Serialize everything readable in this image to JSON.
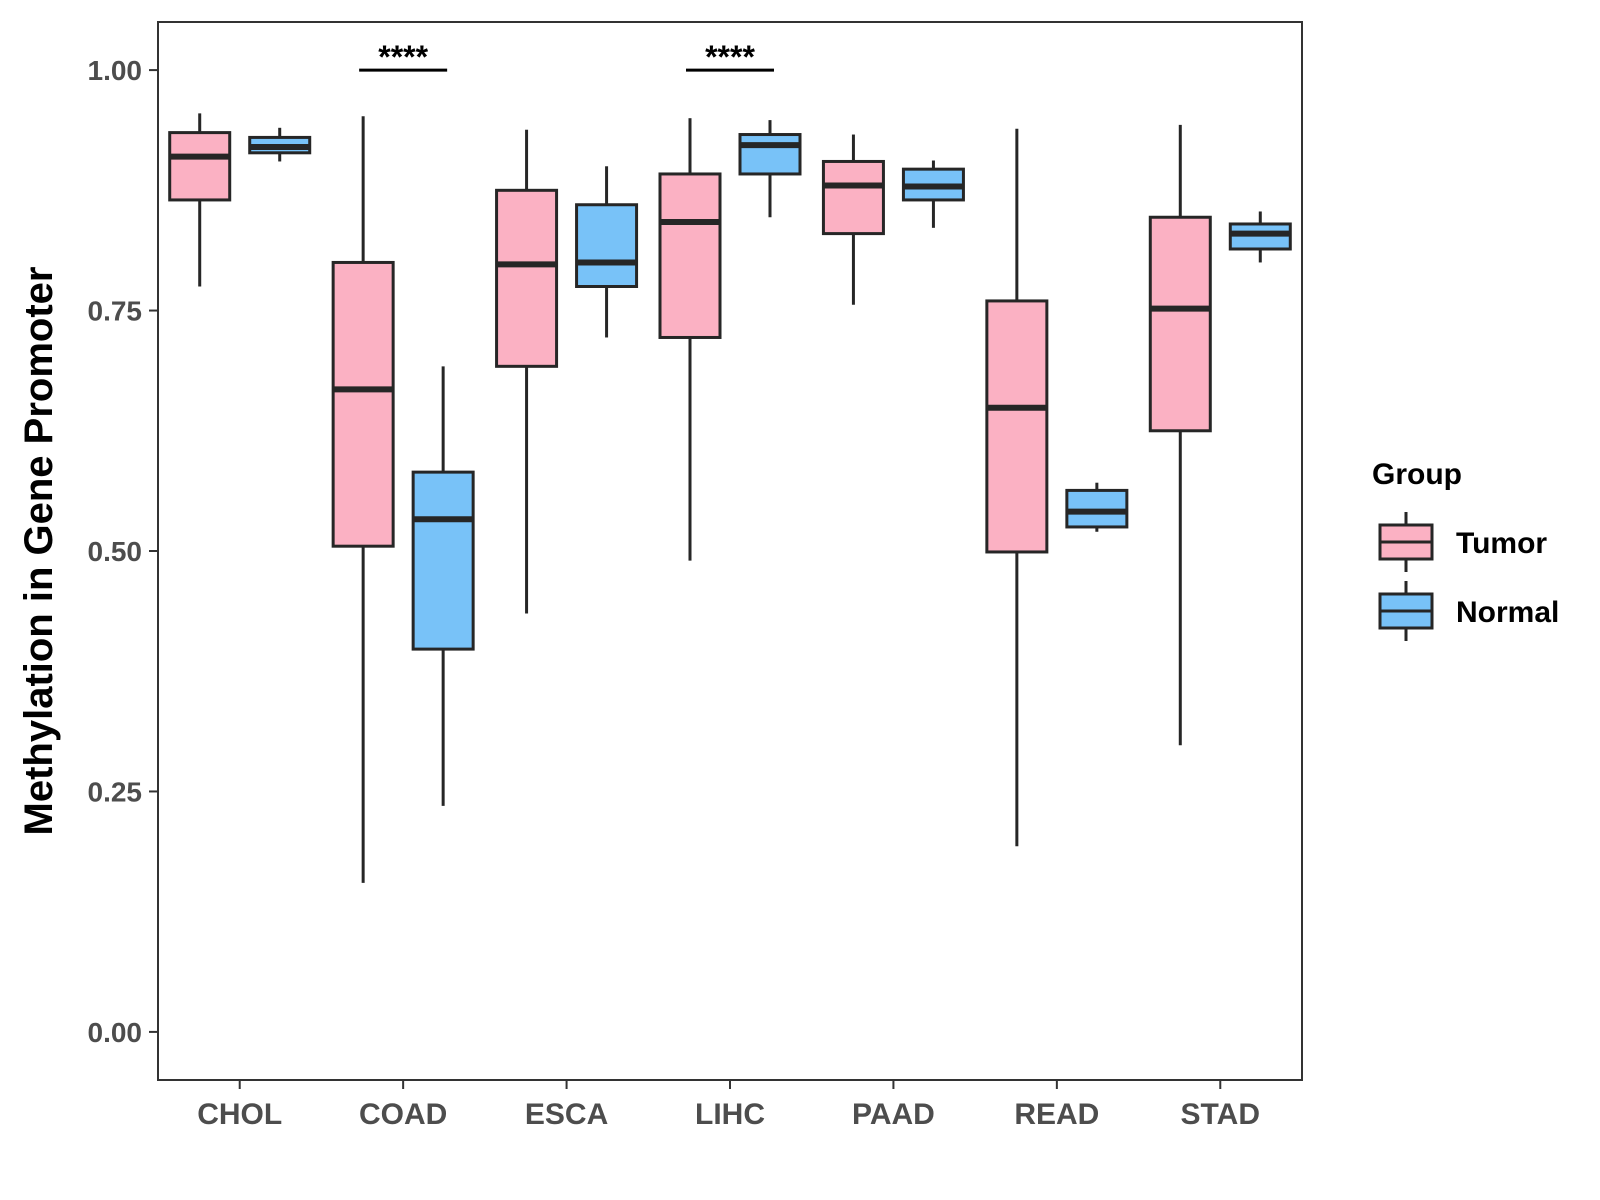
{
  "chart_data": {
    "type": "boxplot",
    "title": "",
    "xlabel": "",
    "ylabel": "Methylation in Gene Promoter",
    "ylim": [
      -0.05,
      1.05
    ],
    "yticks": [
      0.0,
      0.25,
      0.5,
      0.75,
      1.0
    ],
    "ytick_labels": [
      "0.00",
      "0.25",
      "0.50",
      "0.75",
      "1.00"
    ],
    "categories": [
      "CHOL",
      "COAD",
      "ESCA",
      "LIHC",
      "PAAD",
      "READ",
      "STAD"
    ],
    "grid": false,
    "legend": {
      "title": "Group",
      "position": "right",
      "entries": [
        {
          "name": "Tumor",
          "color": "#fbb1c3"
        },
        {
          "name": "Normal",
          "color": "#78c2f8"
        }
      ]
    },
    "series": [
      {
        "name": "Tumor",
        "color": "#fbb1c3",
        "boxes": [
          {
            "category": "CHOL",
            "min": 0.775,
            "q1": 0.865,
            "median": 0.91,
            "q3": 0.935,
            "max": 0.955
          },
          {
            "category": "COAD",
            "min": 0.155,
            "q1": 0.505,
            "median": 0.668,
            "q3": 0.8,
            "max": 0.952
          },
          {
            "category": "ESCA",
            "min": 0.435,
            "q1": 0.692,
            "median": 0.798,
            "q3": 0.875,
            "max": 0.938
          },
          {
            "category": "LIHC",
            "min": 0.49,
            "q1": 0.722,
            "median": 0.842,
            "q3": 0.892,
            "max": 0.95
          },
          {
            "category": "PAAD",
            "min": 0.756,
            "q1": 0.83,
            "median": 0.88,
            "q3": 0.905,
            "max": 0.933
          },
          {
            "category": "READ",
            "min": 0.193,
            "q1": 0.499,
            "median": 0.649,
            "q3": 0.76,
            "max": 0.939
          },
          {
            "category": "STAD",
            "min": 0.298,
            "q1": 0.625,
            "median": 0.752,
            "q3": 0.847,
            "max": 0.943
          }
        ]
      },
      {
        "name": "Normal",
        "color": "#78c2f8",
        "boxes": [
          {
            "category": "CHOL",
            "min": 0.905,
            "q1": 0.914,
            "median": 0.92,
            "q3": 0.93,
            "max": 0.94
          },
          {
            "category": "COAD",
            "min": 0.235,
            "q1": 0.398,
            "median": 0.533,
            "q3": 0.582,
            "max": 0.692
          },
          {
            "category": "ESCA",
            "min": 0.722,
            "q1": 0.775,
            "median": 0.8,
            "q3": 0.86,
            "max": 0.9
          },
          {
            "category": "LIHC",
            "min": 0.847,
            "q1": 0.892,
            "median": 0.922,
            "q3": 0.933,
            "max": 0.948
          },
          {
            "category": "PAAD",
            "min": 0.836,
            "q1": 0.865,
            "median": 0.879,
            "q3": 0.897,
            "max": 0.906
          },
          {
            "category": "READ",
            "min": 0.52,
            "q1": 0.525,
            "median": 0.541,
            "q3": 0.563,
            "max": 0.571
          },
          {
            "category": "STAD",
            "min": 0.8,
            "q1": 0.814,
            "median": 0.83,
            "q3": 0.84,
            "max": 0.853
          }
        ]
      }
    ],
    "annotations": [
      {
        "category": "COAD",
        "label": "****",
        "y": 1.0
      },
      {
        "category": "LIHC",
        "label": "****",
        "y": 1.0
      }
    ]
  }
}
